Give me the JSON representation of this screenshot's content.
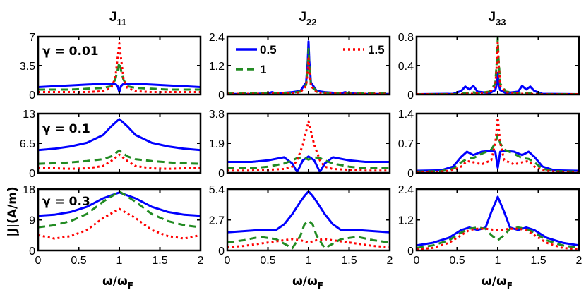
{
  "chart_data": {
    "type": "line",
    "layout": "3x3 grid of subplots",
    "xlabel": "ω/ω",
    "xlabel_sub": "F",
    "ylabel": "|J|(A/m)",
    "xlim": [
      0,
      2
    ],
    "xticks": [
      "0",
      "0.5",
      "1",
      "1.5",
      "2"
    ],
    "columns": [
      {
        "title": "J",
        "title_sub": "11"
      },
      {
        "title": "J",
        "title_sub": "22"
      },
      {
        "title": "J",
        "title_sub": "33"
      }
    ],
    "rows": [
      {
        "gamma_label": "γ = 0.01"
      },
      {
        "gamma_label": "γ = 0.1"
      },
      {
        "gamma_label": "γ = 0.3"
      }
    ],
    "legend": {
      "location": "top of row 1, column J22",
      "entries": [
        {
          "label": "0.5",
          "color": "#0000ff",
          "style": "solid"
        },
        {
          "label": "1",
          "color": "#228b22",
          "style": "dashed"
        },
        {
          "label": "1.5",
          "color": "#ff0000",
          "style": "dotted"
        }
      ]
    },
    "series_styles": [
      {
        "name": "0.5",
        "color": "#0000ff",
        "dash": ""
      },
      {
        "name": "1",
        "color": "#228b22",
        "dash": "10,6"
      },
      {
        "name": "1.5",
        "color": "#ff0000",
        "dash": "3,4"
      }
    ],
    "panels": [
      {
        "row": 0,
        "col": 0,
        "ylim": [
          0,
          7
        ],
        "yticks": [
          "0",
          "3.5",
          "7"
        ],
        "x": [
          0,
          0.2,
          0.4,
          0.6,
          0.8,
          0.9,
          0.95,
          0.98,
          1.0,
          1.02,
          1.05,
          1.1,
          1.2,
          1.4,
          1.6,
          1.8,
          2.0
        ],
        "series": [
          {
            "name": "0.5",
            "values": [
              0.9,
              1.0,
              1.1,
              1.2,
              1.3,
              1.3,
              1.3,
              1.0,
              0.3,
              1.0,
              1.3,
              1.3,
              1.3,
              1.2,
              1.1,
              1.0,
              0.9
            ]
          },
          {
            "name": "1",
            "values": [
              0.6,
              0.6,
              0.6,
              0.7,
              0.8,
              1.0,
              1.8,
              3.0,
              3.9,
              3.0,
              1.8,
              1.0,
              0.8,
              0.7,
              0.6,
              0.6,
              0.6
            ]
          },
          {
            "name": "1.5",
            "values": [
              0.3,
              0.3,
              0.3,
              0.3,
              0.4,
              0.8,
              2.0,
              4.5,
              6.2,
              4.5,
              2.0,
              0.8,
              0.4,
              0.3,
              0.3,
              0.3,
              0.3
            ]
          }
        ]
      },
      {
        "row": 0,
        "col": 1,
        "ylim": [
          0,
          2.4
        ],
        "yticks": [
          "0",
          "1.2",
          "2.4"
        ],
        "x": [
          0,
          0.3,
          0.5,
          0.55,
          0.6,
          0.8,
          0.9,
          0.97,
          0.99,
          1.0,
          1.01,
          1.03,
          1.1,
          1.2,
          1.4,
          1.45,
          1.5,
          1.7,
          2.0
        ],
        "series": [
          {
            "name": "0.5",
            "values": [
              0.02,
              0.02,
              0.05,
              0.1,
              0.05,
              0.1,
              0.15,
              0.5,
              1.4,
              2.2,
              1.4,
              0.5,
              0.15,
              0.1,
              0.05,
              0.1,
              0.05,
              0.02,
              0.02
            ]
          },
          {
            "name": "1",
            "values": [
              0.05,
              0.05,
              0.05,
              0.06,
              0.06,
              0.08,
              0.12,
              0.4,
              1.2,
              1.9,
              1.2,
              0.4,
              0.12,
              0.08,
              0.06,
              0.06,
              0.05,
              0.05,
              0.05
            ]
          },
          {
            "name": "1.5",
            "values": [
              0.03,
              0.03,
              0.03,
              0.04,
              0.04,
              0.05,
              0.1,
              0.35,
              1.0,
              1.5,
              1.0,
              0.35,
              0.1,
              0.05,
              0.04,
              0.04,
              0.03,
              0.03,
              0.03
            ]
          }
        ]
      },
      {
        "row": 0,
        "col": 2,
        "ylim": [
          0,
          0.8
        ],
        "yticks": [
          "0",
          "0.4",
          "0.8"
        ],
        "x": [
          0,
          0.45,
          0.55,
          0.6,
          0.65,
          0.7,
          0.75,
          0.9,
          0.97,
          0.99,
          1.0,
          1.01,
          1.03,
          1.1,
          1.25,
          1.3,
          1.35,
          1.4,
          1.45,
          1.55,
          2.0
        ],
        "series": [
          {
            "name": "0.5",
            "values": [
              0.005,
              0.01,
              0.05,
              0.11,
              0.07,
              0.12,
              0.04,
              0.02,
              0.06,
              0.15,
              0.3,
              0.15,
              0.06,
              0.02,
              0.04,
              0.12,
              0.07,
              0.11,
              0.05,
              0.01,
              0.005
            ]
          },
          {
            "name": "1",
            "values": [
              0.005,
              0.005,
              0.01,
              0.02,
              0.02,
              0.03,
              0.02,
              0.04,
              0.15,
              0.5,
              0.78,
              0.5,
              0.15,
              0.04,
              0.02,
              0.03,
              0.02,
              0.02,
              0.01,
              0.005,
              0.005
            ]
          },
          {
            "name": "1.5",
            "values": [
              0.005,
              0.005,
              0.005,
              0.01,
              0.01,
              0.01,
              0.02,
              0.03,
              0.12,
              0.45,
              0.72,
              0.45,
              0.12,
              0.03,
              0.02,
              0.01,
              0.01,
              0.01,
              0.005,
              0.005,
              0.005
            ]
          }
        ]
      },
      {
        "row": 1,
        "col": 0,
        "ylim": [
          0,
          13
        ],
        "yticks": [
          "0",
          "6.5",
          "13"
        ],
        "x": [
          0,
          0.2,
          0.4,
          0.6,
          0.8,
          0.9,
          1.0,
          1.1,
          1.2,
          1.4,
          1.6,
          1.8,
          2.0
        ],
        "series": [
          {
            "name": "0.5",
            "values": [
              5.0,
              5.3,
              5.8,
              6.6,
              8.3,
              10.2,
              11.8,
              10.2,
              8.3,
              6.6,
              5.8,
              5.3,
              5.0
            ]
          },
          {
            "name": "1",
            "values": [
              2.0,
              2.1,
              2.3,
              2.6,
              3.0,
              3.6,
              4.9,
              3.6,
              3.0,
              2.6,
              2.3,
              2.1,
              2.0
            ]
          },
          {
            "name": "1.5",
            "values": [
              1.1,
              1.0,
              0.9,
              1.0,
              1.5,
              2.6,
              4.0,
              2.6,
              1.5,
              1.0,
              0.9,
              1.0,
              1.1
            ]
          }
        ]
      },
      {
        "row": 1,
        "col": 1,
        "ylim": [
          0,
          3.8
        ],
        "yticks": [
          "0",
          "1.9",
          "3.8"
        ],
        "x": [
          0,
          0.3,
          0.5,
          0.7,
          0.8,
          0.86,
          0.93,
          1.0,
          1.07,
          1.14,
          1.2,
          1.3,
          1.5,
          1.7,
          2.0
        ],
        "series": [
          {
            "name": "0.5",
            "values": [
              0.7,
              0.7,
              0.8,
              1.0,
              0.6,
              0.05,
              0.8,
              1.05,
              0.8,
              0.05,
              0.6,
              1.0,
              0.8,
              0.7,
              0.7
            ]
          },
          {
            "name": "1",
            "values": [
              0.3,
              0.3,
              0.4,
              0.6,
              0.8,
              0.95,
              1.0,
              0.85,
              1.0,
              0.95,
              0.8,
              0.6,
              0.4,
              0.3,
              0.3
            ]
          },
          {
            "name": "1.5",
            "values": [
              0.15,
              0.15,
              0.2,
              0.25,
              0.4,
              0.8,
              1.8,
              3.3,
              1.8,
              0.8,
              0.4,
              0.25,
              0.2,
              0.15,
              0.15
            ]
          }
        ]
      },
      {
        "row": 1,
        "col": 2,
        "ylim": [
          0,
          1.4
        ],
        "yticks": [
          "0",
          "0.7",
          "1.4"
        ],
        "x": [
          0,
          0.3,
          0.45,
          0.55,
          0.62,
          0.7,
          0.8,
          0.92,
          0.97,
          1.0,
          1.03,
          1.08,
          1.2,
          1.3,
          1.38,
          1.45,
          1.55,
          1.7,
          2.0
        ],
        "series": [
          {
            "name": "0.5",
            "values": [
              0.05,
              0.06,
              0.15,
              0.38,
              0.5,
              0.42,
              0.5,
              0.52,
              0.5,
              0.12,
              0.5,
              0.52,
              0.5,
              0.42,
              0.5,
              0.38,
              0.15,
              0.06,
              0.05
            ]
          },
          {
            "name": "1",
            "values": [
              0.03,
              0.04,
              0.1,
              0.25,
              0.33,
              0.35,
              0.45,
              0.55,
              0.7,
              0.9,
              0.7,
              0.55,
              0.45,
              0.35,
              0.33,
              0.25,
              0.1,
              0.04,
              0.03
            ]
          },
          {
            "name": "1.5",
            "values": [
              0.02,
              0.03,
              0.06,
              0.15,
              0.28,
              0.25,
              0.2,
              0.3,
              0.7,
              1.3,
              0.7,
              0.3,
              0.2,
              0.25,
              0.28,
              0.15,
              0.06,
              0.03,
              0.02
            ]
          }
        ]
      },
      {
        "row": 2,
        "col": 0,
        "ylim": [
          0,
          18
        ],
        "yticks": [
          "0",
          "9",
          "18"
        ],
        "x": [
          0,
          0.2,
          0.4,
          0.6,
          0.8,
          1.0,
          1.2,
          1.4,
          1.6,
          1.8,
          2.0
        ],
        "series": [
          {
            "name": "0.5",
            "values": [
              10.2,
              10.5,
              11.3,
              12.8,
              15.3,
              17.0,
              15.3,
              12.8,
              11.3,
              10.5,
              10.2
            ]
          },
          {
            "name": "1",
            "values": [
              6.8,
              7.4,
              8.6,
              10.7,
              14.3,
              17.3,
              14.3,
              10.7,
              8.6,
              7.4,
              6.8
            ]
          },
          {
            "name": "1.5",
            "values": [
              4.5,
              3.5,
              4.2,
              6.0,
              9.5,
              12.2,
              9.5,
              6.0,
              4.2,
              3.5,
              4.5
            ]
          }
        ]
      },
      {
        "row": 2,
        "col": 1,
        "ylim": [
          0,
          5.4
        ],
        "yticks": [
          "0",
          "2.7",
          "5.4"
        ],
        "x": [
          0,
          0.2,
          0.4,
          0.6,
          0.7,
          0.8,
          0.9,
          0.95,
          1.0,
          1.05,
          1.1,
          1.2,
          1.3,
          1.4,
          1.6,
          1.8,
          2.0
        ],
        "series": [
          {
            "name": "0.5",
            "values": [
              1.6,
              1.7,
              1.8,
              1.8,
              2.3,
              3.2,
              4.3,
              4.8,
              5.2,
              4.8,
              4.3,
              3.2,
              2.3,
              1.8,
              1.8,
              1.7,
              1.6
            ]
          },
          {
            "name": "1",
            "values": [
              0.7,
              0.9,
              1.2,
              1.0,
              0.6,
              0.2,
              1.3,
              2.3,
              2.6,
              2.3,
              1.3,
              0.2,
              0.6,
              1.0,
              1.2,
              0.9,
              0.7
            ]
          },
          {
            "name": "1.5",
            "values": [
              0.3,
              0.4,
              0.6,
              0.8,
              0.9,
              1.0,
              0.9,
              0.8,
              0.7,
              0.8,
              0.9,
              1.0,
              0.9,
              0.8,
              0.6,
              0.4,
              0.3
            ]
          }
        ]
      },
      {
        "row": 2,
        "col": 2,
        "ylim": [
          0,
          2.4
        ],
        "yticks": [
          "0",
          "1.2",
          "2.4"
        ],
        "x": [
          0,
          0.2,
          0.4,
          0.55,
          0.65,
          0.75,
          0.85,
          0.92,
          1.0,
          1.08,
          1.15,
          1.25,
          1.35,
          1.45,
          1.6,
          1.8,
          2.0
        ],
        "series": [
          {
            "name": "0.5",
            "values": [
              0.2,
              0.3,
              0.5,
              0.8,
              0.9,
              0.8,
              0.9,
              1.5,
              2.1,
              1.5,
              0.9,
              0.8,
              0.9,
              0.8,
              0.5,
              0.3,
              0.2
            ]
          },
          {
            "name": "1",
            "values": [
              0.1,
              0.2,
              0.4,
              0.7,
              0.85,
              0.9,
              0.85,
              0.6,
              0.4,
              0.6,
              0.85,
              0.9,
              0.85,
              0.7,
              0.4,
              0.2,
              0.1
            ]
          },
          {
            "name": "1.5",
            "values": [
              0.05,
              0.1,
              0.3,
              0.6,
              0.8,
              0.85,
              0.85,
              0.82,
              0.8,
              0.82,
              0.85,
              0.85,
              0.8,
              0.6,
              0.3,
              0.1,
              0.05
            ]
          }
        ]
      }
    ]
  }
}
